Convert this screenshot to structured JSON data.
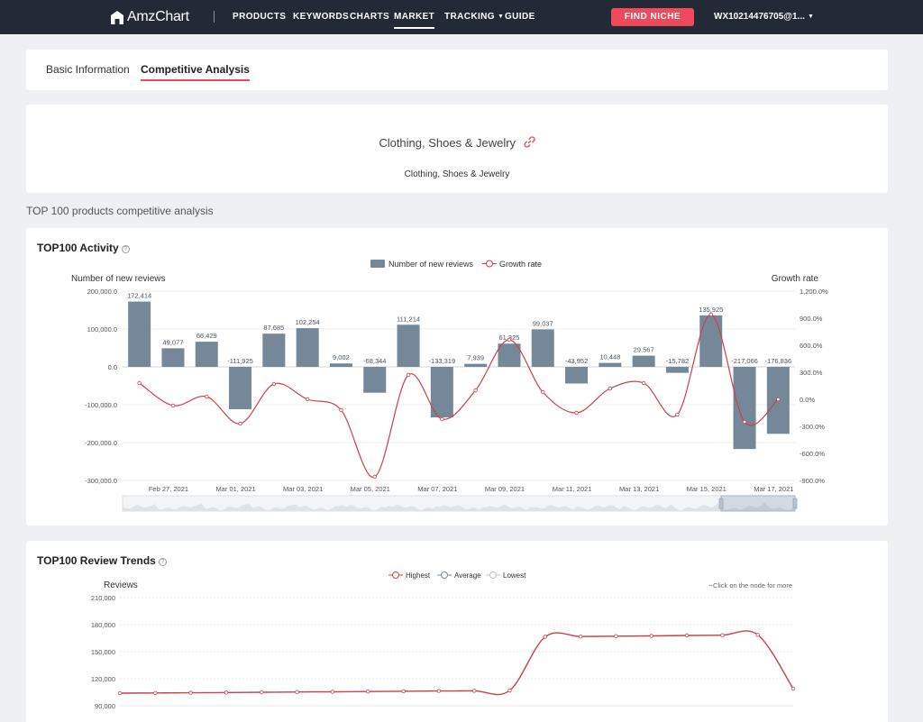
{
  "nav": {
    "brand": "AmzChart",
    "items": [
      {
        "label": "PRODUCTS"
      },
      {
        "label": "KEYWORDS"
      },
      {
        "label": "CHARTS"
      },
      {
        "label": "MARKET"
      },
      {
        "label": "TRACKING"
      },
      {
        "label": "GUIDE"
      }
    ],
    "find_button": "FIND NICHE",
    "account": "WX10214476705@1...",
    "accent_color": "#ef4a5b",
    "bar_color": "#232a36"
  },
  "tabs": [
    {
      "label": "Basic Information"
    },
    {
      "label": "Competitive Analysis"
    }
  ],
  "category": {
    "title": "Clothing, Shoes & Jewelry",
    "subtitle": "Clothing, Shoes & Jewelry"
  },
  "section_label": "TOP 100 products competitive analysis",
  "activity": {
    "title": "TOP100 Activity"
  },
  "trends": {
    "title": "TOP100 Review Trends",
    "hint": "--Click on the node for more"
  },
  "chart_data": [
    {
      "type": "bar",
      "legend": [
        "Number of new reviews",
        "Growth rate"
      ],
      "ylabel": "Number of new reviews",
      "ylabel_right": "Growth rate",
      "ylim": [
        -300000,
        200000
      ],
      "yticks": [
        "200,000.0",
        "100,000.0",
        "0.0",
        "-100,000.0",
        "-200,000.0",
        "-300,000.0"
      ],
      "ylim_right": [
        -900,
        1200
      ],
      "yticks_right": [
        "1,200.0%",
        "900.0%",
        "600.0%",
        "300.0%",
        "0.0%",
        "-300.0%",
        "-600.0%",
        "-900.0%"
      ],
      "x_tick_labels": [
        "Feb 27, 2021",
        "Mar 01, 2021",
        "Mar 03, 2021",
        "Mar 05, 2021",
        "Mar 07, 2021",
        "Mar 09, 2021",
        "Mar 11, 2021",
        "Mar 13, 2021",
        "Mar 15, 2021",
        "Mar 17, 2021"
      ],
      "series": [
        {
          "name": "Number of new reviews",
          "color": "#75889a",
          "values": [
            172414,
            49077,
            66429,
            -111925,
            87685,
            102254,
            9002,
            -68344,
            111214,
            -133319,
            7939,
            61325,
            99037,
            -43952,
            10448,
            29567,
            -15782,
            135925,
            -217066,
            -176836
          ],
          "labels": [
            "172,414",
            "49,077",
            "66,429",
            "-111,925",
            "87,685",
            "102,254",
            "9,002",
            "-68,344",
            "111,214",
            "-133,319",
            "7,939",
            "61,325",
            "99,037",
            "-43,952",
            "10,448",
            "29,567",
            "-15,782",
            "135,925",
            "-217,066",
            "-176,836"
          ]
        },
        {
          "name": "Growth rate",
          "color": "#c9414b",
          "values": [
            180,
            -70,
            30,
            -270,
            170,
            0,
            -120,
            -860,
            270,
            -220,
            100,
            660,
            80,
            -150,
            120,
            180,
            -170,
            940,
            -250,
            0
          ]
        }
      ]
    },
    {
      "type": "line",
      "legend": [
        "Highest",
        "Average",
        "Lowest"
      ],
      "ylabel": "Reviews",
      "ylim": [
        90000,
        210000
      ],
      "yticks": [
        "210,000",
        "180,000",
        "150,000",
        "120,000",
        "90,000"
      ],
      "series": [
        {
          "name": "Highest",
          "color": "#c9414b",
          "values": [
            104000,
            104200,
            104400,
            104700,
            105000,
            105300,
            105500,
            105800,
            106100,
            106400,
            106600,
            107000,
            166500,
            166800,
            167200,
            167500,
            168000,
            168300,
            168700,
            109000
          ]
        }
      ]
    }
  ]
}
